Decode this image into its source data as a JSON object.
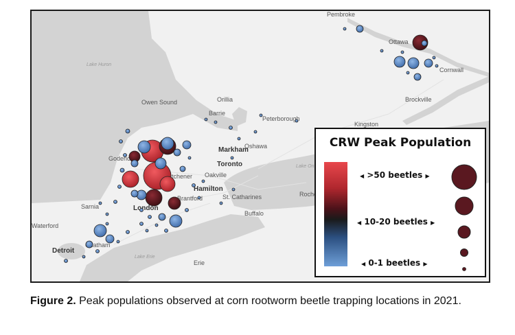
{
  "map": {
    "places": [
      {
        "name": "Pembroke",
        "bold": false
      },
      {
        "name": "Ottawa",
        "bold": false
      },
      {
        "name": "Cornwall",
        "bold": false
      },
      {
        "name": "Brockville",
        "bold": false
      },
      {
        "name": "Kingston",
        "bold": false
      },
      {
        "name": "Owen Sound",
        "bold": false
      },
      {
        "name": "Orillia",
        "bold": false
      },
      {
        "name": "Barrie",
        "bold": false
      },
      {
        "name": "Peterborough",
        "bold": false
      },
      {
        "name": "Markham",
        "bold": true
      },
      {
        "name": "Oshawa",
        "bold": false
      },
      {
        "name": "Toronto",
        "bold": true
      },
      {
        "name": "Oakville",
        "bold": false
      },
      {
        "name": "Hamilton",
        "bold": true
      },
      {
        "name": "Goderich",
        "bold": false
      },
      {
        "name": "Kitchener",
        "bold": false
      },
      {
        "name": "London",
        "bold": true
      },
      {
        "name": "Brantford",
        "bold": false
      },
      {
        "name": "St. Catharines",
        "bold": false
      },
      {
        "name": "Buffalo",
        "bold": false
      },
      {
        "name": "Sarnia",
        "bold": false
      },
      {
        "name": "Waterford",
        "bold": false
      },
      {
        "name": "Chatham",
        "bold": false
      },
      {
        "name": "Detroit",
        "bold": true
      },
      {
        "name": "Erie",
        "bold": false
      },
      {
        "name": "Roche",
        "bold": false
      }
    ],
    "water_labels": [
      "Lake Huron",
      "Lake Erie",
      "Lake Ontario"
    ]
  },
  "legend": {
    "title": "CRW Peak Population",
    "labels": [
      ">50 beetles",
      "10-20 beetles",
      "0-1 beetles"
    ],
    "scale_colors": {
      "high": "#e8474c",
      "mid": "#1a1a1a",
      "low": "#6e9fd8"
    }
  },
  "caption": {
    "bold": "Figure 2.",
    "text": " Peak populations observed at corn rootworm beetle trapping locations in 2021."
  }
}
